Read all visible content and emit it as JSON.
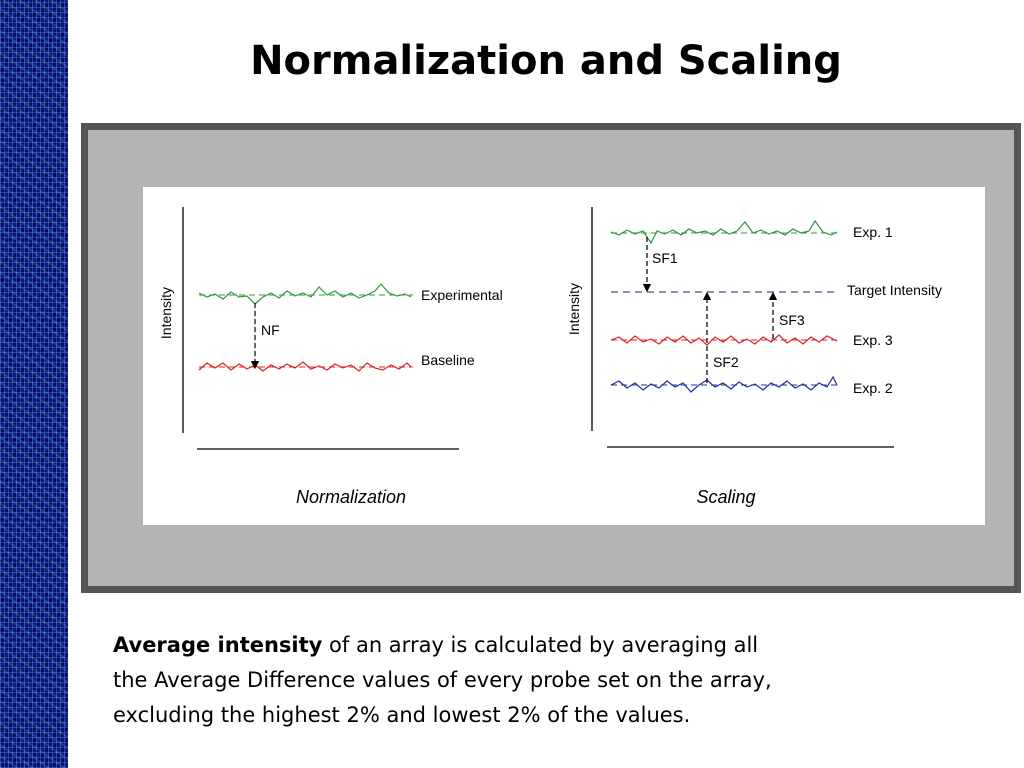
{
  "slide": {
    "title": "Normalization and Scaling"
  },
  "normalization_panel": {
    "axis_label": "Intensity",
    "experimental_label": "Experimental",
    "baseline_label": "Baseline",
    "factor_label": "NF",
    "panel_label": "Normalization"
  },
  "scaling_panel": {
    "axis_label": "Intensity",
    "exp1_label": "Exp. 1",
    "target_label": "Target Intensity",
    "exp3_label": "Exp. 3",
    "exp2_label": "Exp. 2",
    "sf1_label": "SF1",
    "sf2_label": "SF2",
    "sf3_label": "SF3",
    "panel_label": "Scaling"
  },
  "caption": {
    "bold": "Average intensity",
    "line1": " of an array is calculated by averaging all",
    "line2": "the Average Difference values of every probe set on the array,",
    "line3": "excluding the highest 2% and lowest 2% of the values."
  },
  "colors": {
    "green": "#2a9a3a",
    "red": "#e02020",
    "blue": "#2030a0",
    "frame": "#555555",
    "frame_fill": "#b3b3b3"
  }
}
